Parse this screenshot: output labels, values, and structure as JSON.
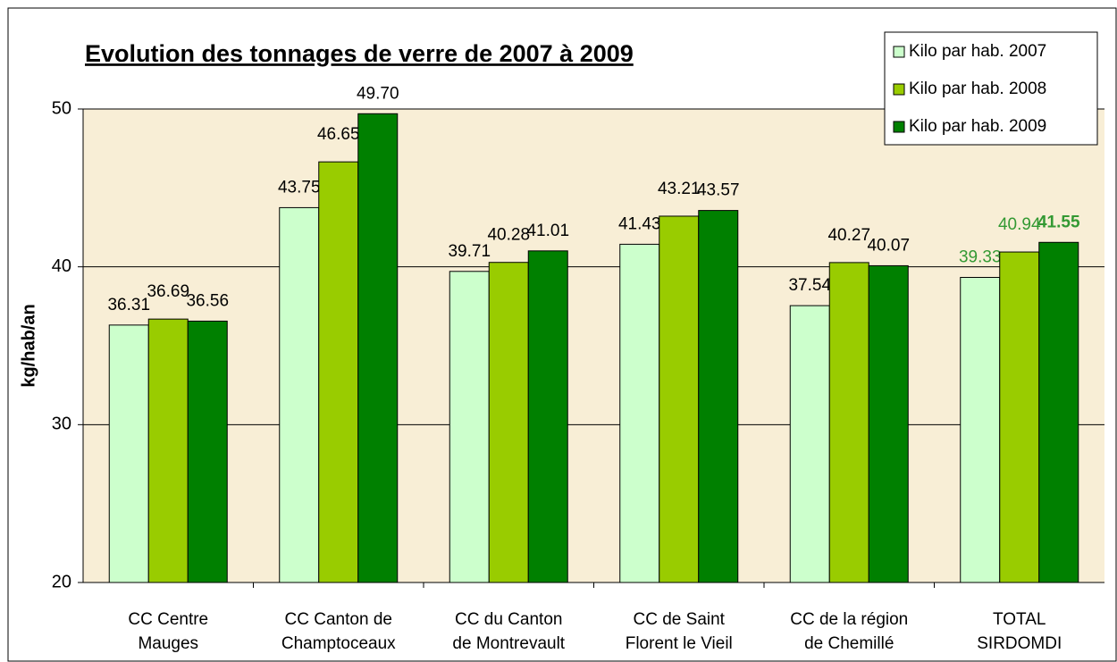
{
  "chart_data": {
    "type": "bar",
    "title": "Evolution des tonnages de verre de 2007 à 2009",
    "y_label": "kg/hab/an",
    "categories": [
      [
        "CC Centre",
        "Mauges"
      ],
      [
        "CC Canton de",
        "Champtoceaux"
      ],
      [
        "CC du Canton",
        "de Montrevault"
      ],
      [
        "CC de Saint",
        "Florent le Vieil"
      ],
      [
        "CC de la région",
        "de Chemillé"
      ],
      [
        "TOTAL",
        "SIRDOMDI"
      ]
    ],
    "series": [
      {
        "name": "Kilo par hab. 2007",
        "color": "#ccffcc",
        "values": [
          36.31,
          43.75,
          39.71,
          41.43,
          37.54,
          39.33
        ],
        "value_labels": [
          "36.31",
          "43.75",
          "39.71",
          "41.43",
          "37.54",
          "39.33"
        ]
      },
      {
        "name": "Kilo par hab. 2008",
        "color": "#99cc00",
        "values": [
          36.69,
          46.65,
          40.28,
          43.21,
          40.27,
          40.94
        ],
        "value_labels": [
          "36.69",
          "46.65",
          "40.28",
          "43.21",
          "40.27",
          "40.94"
        ]
      },
      {
        "name": "Kilo par hab. 2009",
        "color": "#008000",
        "values": [
          36.56,
          49.7,
          41.01,
          43.57,
          40.07,
          41.55
        ],
        "value_labels": [
          "36.56",
          "49.70",
          "41.01",
          "43.57",
          "40.07",
          "41.55"
        ]
      }
    ],
    "ylim": [
      20,
      50
    ],
    "yticks": [
      20,
      30,
      40,
      50
    ],
    "grid": true,
    "legend": "top-right"
  }
}
